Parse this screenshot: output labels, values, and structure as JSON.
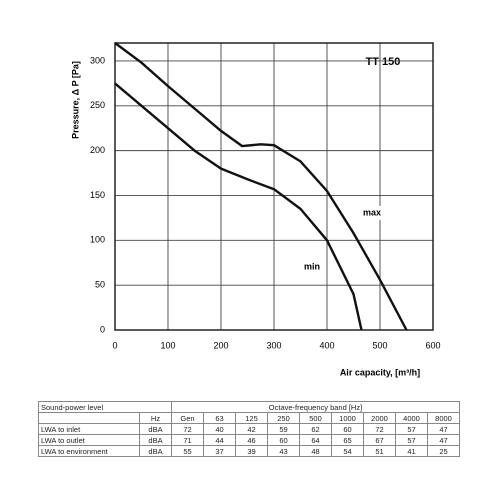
{
  "chart_data": {
    "type": "line",
    "annotation": "TT 150",
    "x_label": "Air capacity, [m³/h]",
    "y_label": "Pressure, Δ P [Pa]",
    "series": [
      {
        "name": "max",
        "color": "#111111",
        "x": [
          0,
          50,
          100,
          150,
          200,
          240,
          275,
          300,
          350,
          400,
          450,
          500,
          550
        ],
        "values": [
          320,
          298,
          272,
          247,
          222,
          205,
          207,
          206,
          188,
          155,
          108,
          56,
          0
        ]
      },
      {
        "name": "min",
        "color": "#111111",
        "x": [
          0,
          50,
          100,
          150,
          200,
          250,
          300,
          350,
          400,
          450,
          465
        ],
        "values": [
          275,
          250,
          225,
          200,
          180,
          168,
          157,
          135,
          100,
          40,
          0
        ]
      }
    ],
    "xlim": [
      0,
      600
    ],
    "ylim": [
      0,
      320
    ],
    "xticks": [
      0,
      100,
      200,
      300,
      400,
      500,
      600
    ],
    "yticks": [
      0,
      50,
      100,
      150,
      200,
      250,
      300
    ],
    "grid": true
  },
  "table": {
    "header": [
      "Sound-power level",
      "Octave-frequency band [Hz]"
    ],
    "unit_header": "Hz",
    "bands": [
      "Gen",
      "63",
      "125",
      "250",
      "500",
      "1000",
      "2000",
      "4000",
      "8000"
    ],
    "rows": [
      {
        "label": "LWA to inlet",
        "unit": "dBA",
        "values": [
          72,
          40,
          42,
          59,
          62,
          60,
          72,
          57,
          47
        ]
      },
      {
        "label": "LWA to outlet",
        "unit": "dBA",
        "values": [
          71,
          44,
          46,
          60,
          64,
          65,
          67,
          57,
          47
        ]
      },
      {
        "label": "LWA to environment",
        "unit": "dBA",
        "values": [
          55,
          37,
          39,
          43,
          48,
          54,
          51,
          41,
          25
        ]
      }
    ]
  }
}
